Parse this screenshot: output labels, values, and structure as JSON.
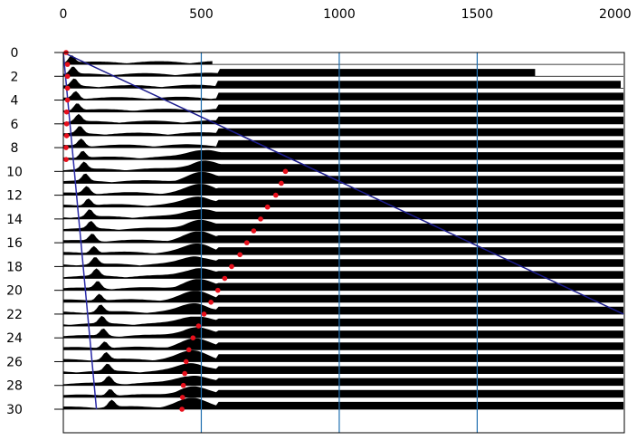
{
  "chart_data": {
    "type": "seismic-trace-plot",
    "title": "",
    "xlabel": "",
    "ylabel": "",
    "x_axis": {
      "position": "top",
      "range": [
        0,
        2030
      ],
      "ticks": [
        0,
        500,
        1000,
        1500,
        2000
      ],
      "tick_labels": [
        "0",
        "500",
        "1000",
        "1500",
        "2000"
      ],
      "gridlines": [
        500,
        1000,
        1500
      ],
      "grid_color": "#1f6fb0"
    },
    "y_axis": {
      "position": "left",
      "range": [
        0,
        30
      ],
      "inverted": true,
      "ticks": [
        0,
        2,
        4,
        6,
        8,
        10,
        12,
        14,
        16,
        18,
        20,
        22,
        24,
        26,
        28,
        30
      ],
      "tick_labels": [
        "0",
        "2",
        "4",
        "6",
        "8",
        "10",
        "12",
        "14",
        "16",
        "18",
        "20",
        "22",
        "24",
        "26",
        "28",
        "30"
      ]
    },
    "traces": {
      "count": 30,
      "trace_numbers": [
        1,
        2,
        3,
        4,
        5,
        6,
        7,
        8,
        9,
        10,
        11,
        12,
        13,
        14,
        15,
        16,
        17,
        18,
        19,
        20,
        21,
        22,
        23,
        24,
        25,
        26,
        27,
        28,
        29,
        30
      ],
      "fill_color": "#000000",
      "fill_end_x": [
        540,
        1710,
        2020,
        2030,
        2030,
        2030,
        2030,
        2030,
        2030,
        2030,
        2030,
        2030,
        2030,
        2030,
        2030,
        2030,
        2030,
        2030,
        2030,
        2030,
        2030,
        2030,
        2030,
        2030,
        2030,
        2030,
        2030,
        2030,
        2030,
        2030
      ],
      "main_peak_x": [
        null,
        null,
        null,
        null,
        null,
        null,
        null,
        null,
        510,
        505,
        500,
        500,
        495,
        495,
        490,
        490,
        490,
        485,
        485,
        485,
        480,
        480,
        480,
        475,
        475,
        470,
        470,
        465,
        465,
        465
      ],
      "first_break_peak_x": [
        30,
        35,
        40,
        45,
        50,
        55,
        60,
        65,
        70,
        75,
        80,
        85,
        90,
        95,
        100,
        105,
        110,
        115,
        120,
        125,
        130,
        135,
        140,
        145,
        150,
        155,
        160,
        165,
        170,
        175
      ]
    },
    "picks": {
      "color": "#e8101c",
      "points": [
        {
          "x": 10,
          "y": 0
        },
        {
          "x": 15,
          "y": 1
        },
        {
          "x": 15,
          "y": 2
        },
        {
          "x": 15,
          "y": 3
        },
        {
          "x": 15,
          "y": 4
        },
        {
          "x": 12,
          "y": 5
        },
        {
          "x": 12,
          "y": 6
        },
        {
          "x": 12,
          "y": 7
        },
        {
          "x": 10,
          "y": 8
        },
        {
          "x": 10,
          "y": 9
        },
        {
          "x": 805,
          "y": 10
        },
        {
          "x": 790,
          "y": 11
        },
        {
          "x": 770,
          "y": 12
        },
        {
          "x": 740,
          "y": 13
        },
        {
          "x": 715,
          "y": 14
        },
        {
          "x": 690,
          "y": 15
        },
        {
          "x": 665,
          "y": 16
        },
        {
          "x": 640,
          "y": 17
        },
        {
          "x": 610,
          "y": 18
        },
        {
          "x": 585,
          "y": 19
        },
        {
          "x": 560,
          "y": 20
        },
        {
          "x": 535,
          "y": 21
        },
        {
          "x": 510,
          "y": 22
        },
        {
          "x": 490,
          "y": 23
        },
        {
          "x": 470,
          "y": 24
        },
        {
          "x": 455,
          "y": 25
        },
        {
          "x": 445,
          "y": 26
        },
        {
          "x": 440,
          "y": 27
        },
        {
          "x": 435,
          "y": 28
        },
        {
          "x": 432,
          "y": 29
        },
        {
          "x": 430,
          "y": 30
        }
      ]
    },
    "lines": [
      {
        "color": "#1a1a8c",
        "from": {
          "x": 0,
          "y": 0
        },
        "to": {
          "x": 2030,
          "y": 22
        }
      },
      {
        "color": "#2a2aa8",
        "from": {
          "x": 0,
          "y": 0
        },
        "to": {
          "x": 120,
          "y": 30
        }
      }
    ]
  }
}
